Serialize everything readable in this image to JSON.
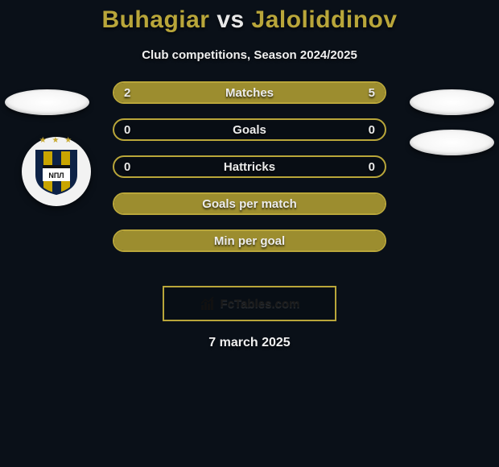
{
  "header": {
    "player1": "Buhagiar",
    "vs": "vs",
    "player2": "Jaloliddinov"
  },
  "subtitle": "Club competitions, Season 2024/2025",
  "colors": {
    "accent": "#b9a63a",
    "accent_fill": "#9c8d2f",
    "background": "#0a1018",
    "text": "#e8e8e8"
  },
  "club_badge": {
    "shield_stripes": [
      "#0d2246",
      "#c9a500"
    ],
    "stripe_count": 5
  },
  "stats": {
    "rows": [
      {
        "label": "Matches",
        "left": "2",
        "right": "5",
        "left_pct": 28,
        "right_pct": 72,
        "border": "#b9a63a",
        "fill_left": "#9c8d2f",
        "fill_right": "#9c8d2f"
      },
      {
        "label": "Goals",
        "left": "0",
        "right": "0",
        "left_pct": 0,
        "right_pct": 0,
        "border": "#b9a63a",
        "fill_left": "#9c8d2f",
        "fill_right": "#9c8d2f"
      },
      {
        "label": "Hattricks",
        "left": "0",
        "right": "0",
        "left_pct": 0,
        "right_pct": 0,
        "border": "#b9a63a",
        "fill_left": "#9c8d2f",
        "fill_right": "#9c8d2f"
      },
      {
        "label": "Goals per match",
        "left": "",
        "right": "",
        "left_pct": 100,
        "right_pct": 0,
        "border": "#b9a63a",
        "fill_left": "#9c8d2f",
        "fill_right": "#9c8d2f"
      },
      {
        "label": "Min per goal",
        "left": "",
        "right": "",
        "left_pct": 100,
        "right_pct": 0,
        "border": "#b9a63a",
        "fill_left": "#9c8d2f",
        "fill_right": "#9c8d2f"
      }
    ]
  },
  "brand": {
    "text": "FcTables.com"
  },
  "date": "7 march 2025"
}
